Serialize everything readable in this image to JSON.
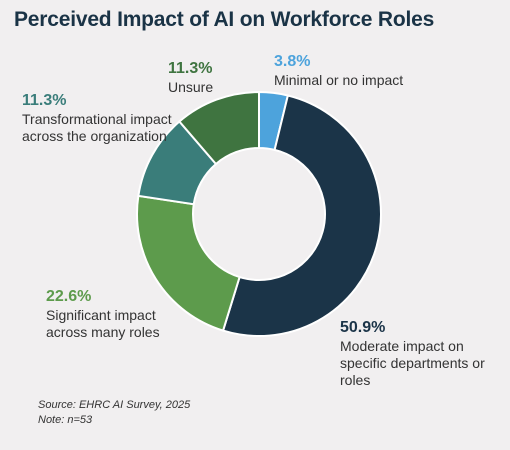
{
  "chart_data": {
    "type": "pie",
    "donut": true,
    "title": "Perceived Impact of AI on Workforce Roles",
    "categories": [
      "Minimal or no impact",
      "Moderate impact on specific departments or roles",
      "Significant impact across many roles",
      "Transformational impact across the organization",
      "Unsure"
    ],
    "values": [
      3.8,
      50.9,
      22.6,
      11.3,
      11.3
    ],
    "value_labels": [
      "3.8%",
      "50.9%",
      "22.6%",
      "11.3%",
      "11.3%"
    ],
    "colors": [
      "#4da3dc",
      "#1b3448",
      "#5d9b4c",
      "#3a7d7a",
      "#3f7440"
    ],
    "label_colors": [
      "#4da3dc",
      "#1b3448",
      "#5d9b4c",
      "#3a7d7a",
      "#3f7440"
    ],
    "legend": "none"
  },
  "footer": {
    "source": "Source: EHRC AI Survey, 2025",
    "note": "Note: n=53"
  }
}
